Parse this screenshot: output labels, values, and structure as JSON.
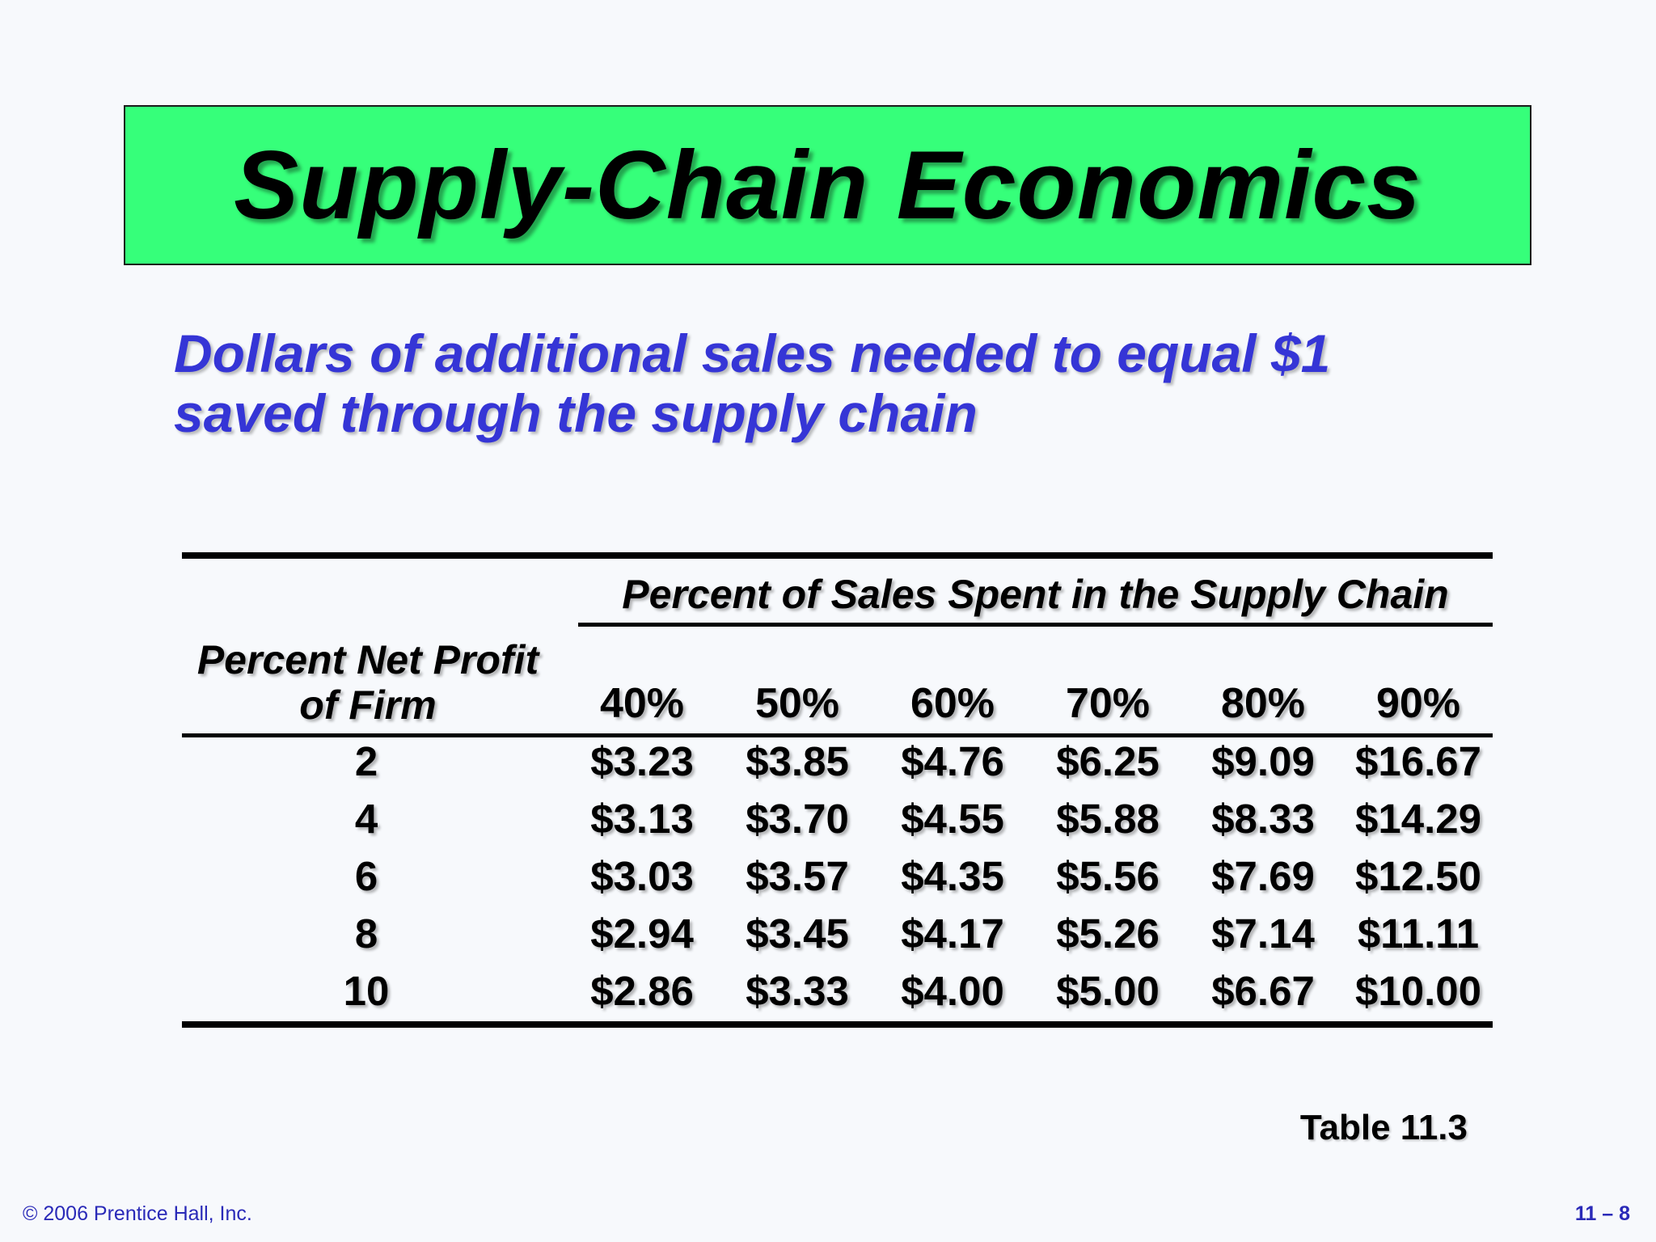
{
  "slide": {
    "title": "Supply-Chain Economics",
    "subtitle_line1": "Dollars of additional sales needed to equal $1",
    "subtitle_line2": "saved through the supply chain",
    "caption": "Table 11.3",
    "copyright": "© 2006 Prentice Hall, Inc.",
    "page_number": "11 – 8",
    "colors": {
      "title_background": "#36ff7a",
      "subtitle_text": "#3535d6",
      "footer_text": "#2a2ab8"
    }
  },
  "table": {
    "group_header": "Percent of Sales Spent in the Supply Chain",
    "row_header_line1": "Percent Net Profit",
    "row_header_line2": "of Firm",
    "columns": [
      "40%",
      "50%",
      "60%",
      "70%",
      "80%",
      "90%"
    ],
    "rows": [
      {
        "label": "2",
        "values": [
          "$3.23",
          "$3.85",
          "$4.76",
          "$6.25",
          "$9.09",
          "$16.67"
        ]
      },
      {
        "label": "4",
        "values": [
          "$3.13",
          "$3.70",
          "$4.55",
          "$5.88",
          "$8.33",
          "$14.29"
        ]
      },
      {
        "label": "6",
        "values": [
          "$3.03",
          "$3.57",
          "$4.35",
          "$5.56",
          "$7.69",
          "$12.50"
        ]
      },
      {
        "label": "8",
        "values": [
          "$2.94",
          "$3.45",
          "$4.17",
          "$5.26",
          "$7.14",
          "$11.11"
        ]
      },
      {
        "label": "10",
        "values": [
          "$2.86",
          "$3.33",
          "$4.00",
          "$5.00",
          "$6.67",
          "$10.00"
        ]
      }
    ]
  }
}
